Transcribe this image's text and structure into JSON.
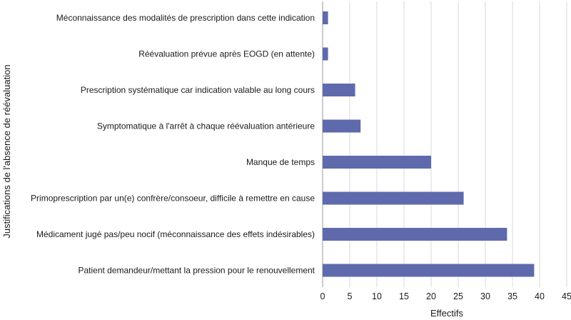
{
  "chart_data": {
    "type": "bar",
    "orientation": "horizontal",
    "title": "",
    "xlabel": "Effectifs",
    "ylabel": "Justifications de l'absence de réévaluation",
    "xlim": [
      0,
      45
    ],
    "x_ticks": [
      0,
      5,
      10,
      15,
      20,
      25,
      30,
      35,
      40,
      45
    ],
    "grid": "vertical",
    "bar_color": "#5f6aad",
    "categories": [
      "Méconnaissance des modalités de prescription dans cette indication",
      "Réévaluation prévue après EOGD (en attente)",
      "Prescription systématique car indication valable au long cours",
      "Symptomatique à l'arrêt à chaque réévaluation antérieure",
      "Manque de temps",
      "Primoprescription par un(e) confrère/consoeur, difficile à remettre en cause",
      "Médicament jugé pas/peu nocif (méconnaissance des effets indésirables)",
      "Patient demandeur/mettant la pression pour le renouvellement"
    ],
    "values": [
      1,
      1,
      6,
      7,
      20,
      26,
      34,
      39
    ]
  }
}
